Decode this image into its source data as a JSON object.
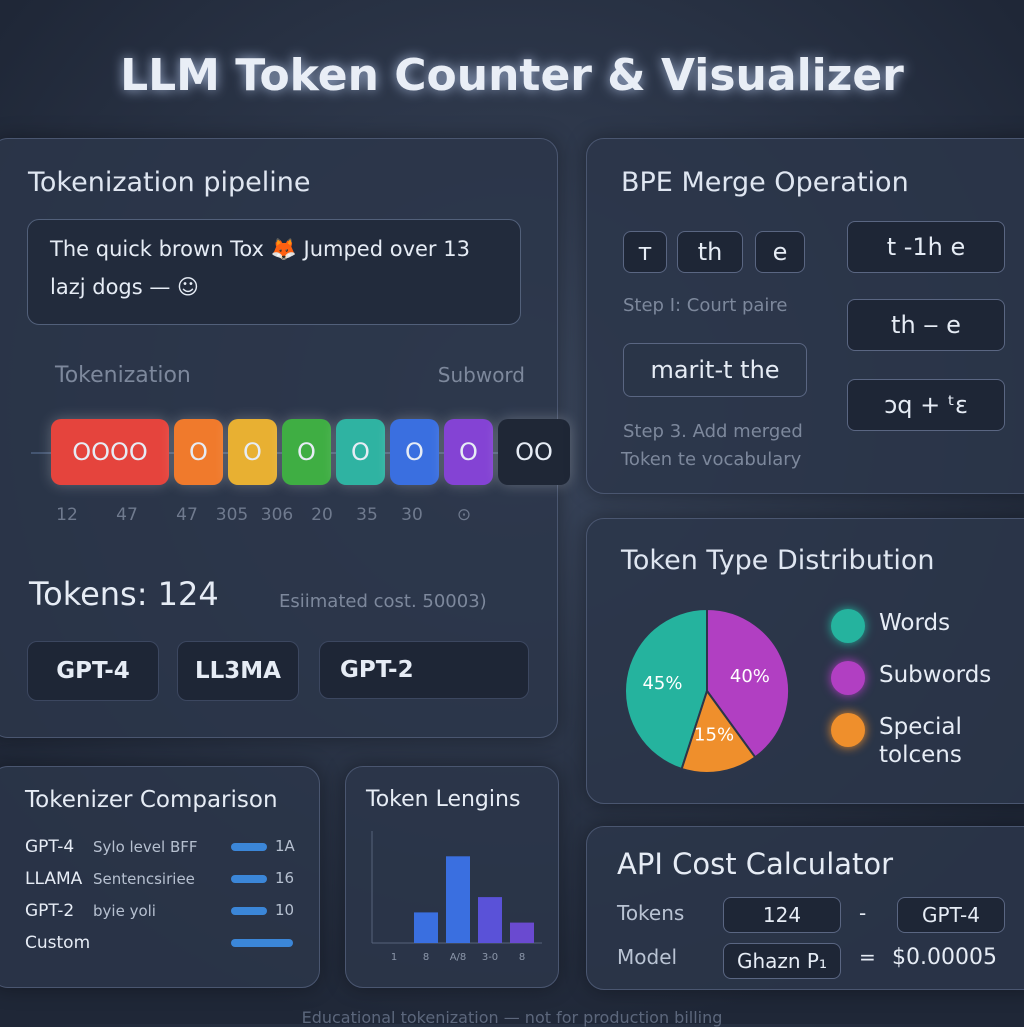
{
  "header": {
    "title": "LLM Token Counter & Visualizer"
  },
  "pipeline": {
    "title": "Tokenization pipeline",
    "input_lines": [
      "The quick brown Tox",
      "Jumped over 13",
      "lazj dogs —"
    ],
    "label_left": "Tokenization",
    "label_right": "Subword",
    "tokens": [
      {
        "text": "OOOO",
        "color": "#e5443d"
      },
      {
        "text": "O",
        "color": "#f07a2c"
      },
      {
        "text": "O",
        "color": "#e8b032"
      },
      {
        "text": "O",
        "color": "#3fae43"
      },
      {
        "text": "O",
        "color": "#2fb3a2"
      },
      {
        "text": "O",
        "color": "#3a6fe0"
      },
      {
        "text": "O",
        "color": "#8443d4"
      },
      {
        "text": "OO",
        "color": "#1f2736"
      }
    ],
    "ids": [
      "12",
      "47",
      "47",
      "305",
      "306",
      "20",
      "35",
      "30",
      "⊙"
    ],
    "count_label": "Tokens:",
    "count": "124",
    "cost_label": "Esiimated cost.",
    "cost": "50003)",
    "models": [
      "GPT-4",
      "LL3MA",
      "GPT-2"
    ]
  },
  "bpe": {
    "title": "BPE Merge Operation",
    "pieces": [
      "т",
      "th",
      "e"
    ],
    "step1": "Step I: Court paire",
    "merged": "marit-t the",
    "step3": [
      "Step 3. Add merged",
      "Token te vocabulary"
    ],
    "merges": [
      "t -1h e",
      "th ‒ e",
      "ɔq + ᵗɛ"
    ]
  },
  "distribution": {
    "type": "pie",
    "title": "Token Type Distribution",
    "categories": [
      "Words",
      "Subwords",
      "Special tolcens"
    ],
    "values": [
      45,
      40,
      15
    ],
    "value_labels": [
      "45%",
      "40%",
      "15%"
    ],
    "colors": [
      "#25b39e",
      "#b13fc2",
      "#ef8f2c"
    ]
  },
  "comparison": {
    "title": "Tokenizer Comparison",
    "rows": [
      {
        "model": "GPT-4",
        "method": "Sylo level BFF",
        "score": "1A"
      },
      {
        "model": "LLAMA",
        "method": "Sentencsiriee",
        "score": "16"
      },
      {
        "model": "GPT-2",
        "method": "byie yoli",
        "score": "10"
      },
      {
        "model": "Custom"
      }
    ]
  },
  "lengths": {
    "type": "bar",
    "title": "Token Lengins",
    "categories": [
      "1",
      "8",
      "A/8",
      "3-0",
      "8"
    ],
    "values": [
      null,
      30,
      85,
      45,
      20
    ],
    "colors": [
      "#3a6fe0",
      "#3a6fe0",
      "#3a6fe0",
      "#5a52d8",
      "#6a4ad0"
    ],
    "ylim": [
      0,
      100
    ]
  },
  "api": {
    "title": "API Cost Calculator",
    "tokens_label": "Tokens",
    "tokens": "124",
    "model_label": "Model",
    "model_input": "Ghazn P₁",
    "model": "GPT-4",
    "result": "$0.00005"
  },
  "footer": {
    "text": "Educational tokenization — not for production billing"
  }
}
